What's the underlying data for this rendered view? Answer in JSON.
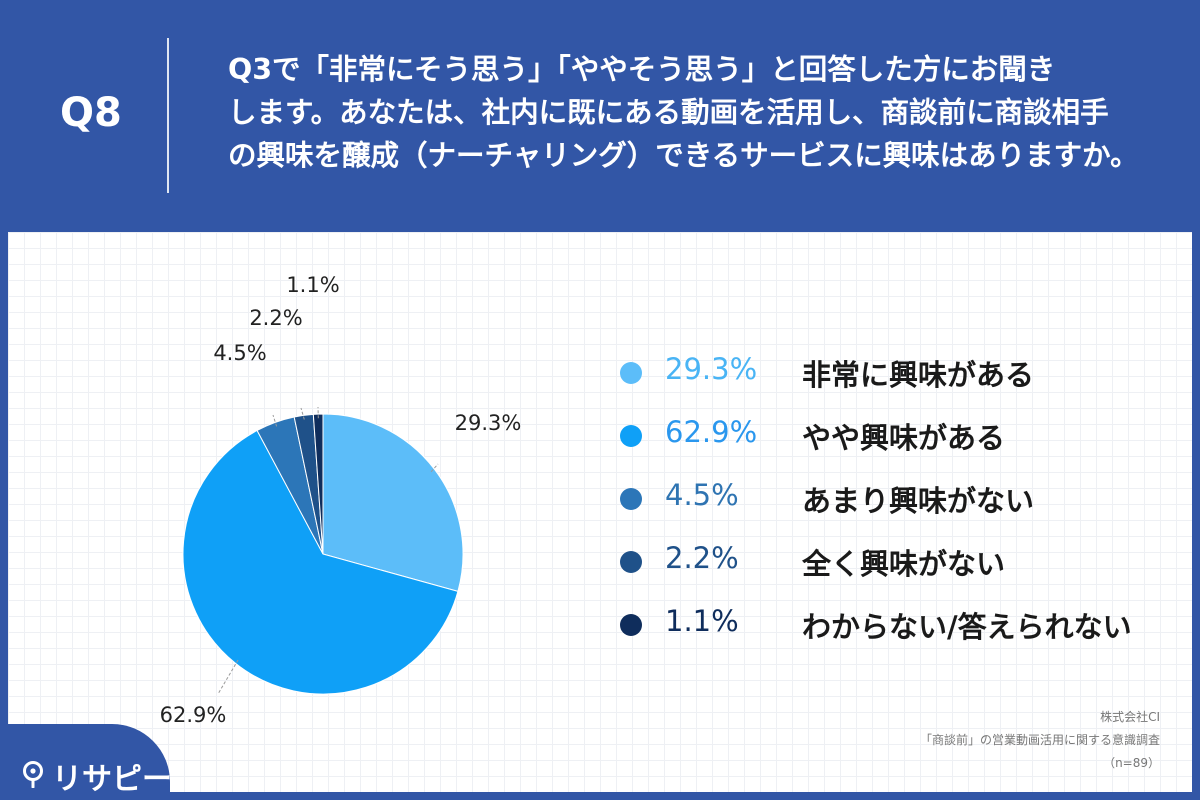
{
  "header": {
    "badge": "Q8",
    "question_lines": [
      "Q3で「非常にそう思う」「ややそう思う」と回答した方にお聞き",
      "します。あなたは、社内に既にある動画を活用し、商談前に商談相手",
      "の興味を醸成（ナーチャリング）できるサービスに興味はありますか。"
    ]
  },
  "chart_data": {
    "type": "pie",
    "slices": [
      {
        "label": "非常に興味がある",
        "value": 29.3,
        "value_label": "29.3%",
        "color": "#5cbdf9"
      },
      {
        "label": "やや興味がある",
        "value": 62.9,
        "value_label": "62.9%",
        "color": "#0fa0f7"
      },
      {
        "label": "あまり興味がない",
        "value": 4.5,
        "value_label": "4.5%",
        "color": "#2c76b8"
      },
      {
        "label": "全く興味がない",
        "value": 2.2,
        "value_label": "2.2%",
        "color": "#1f5189"
      },
      {
        "label": "わからない/答えられない",
        "value": 1.1,
        "value_label": "1.1%",
        "color": "#0f2d5c"
      }
    ],
    "legend_placement": "right"
  },
  "legend_text_colors": [
    "#49b4f5",
    "#2a97ee",
    "#2f74b2",
    "#1f5189",
    "#0f2d5c"
  ],
  "source": {
    "company": "株式会社CI",
    "survey": "「商談前」の営業動画活用に関する意識調査",
    "n": "（n=89）"
  },
  "logo": {
    "text": "リサピー",
    "icon": "pin-icon"
  }
}
